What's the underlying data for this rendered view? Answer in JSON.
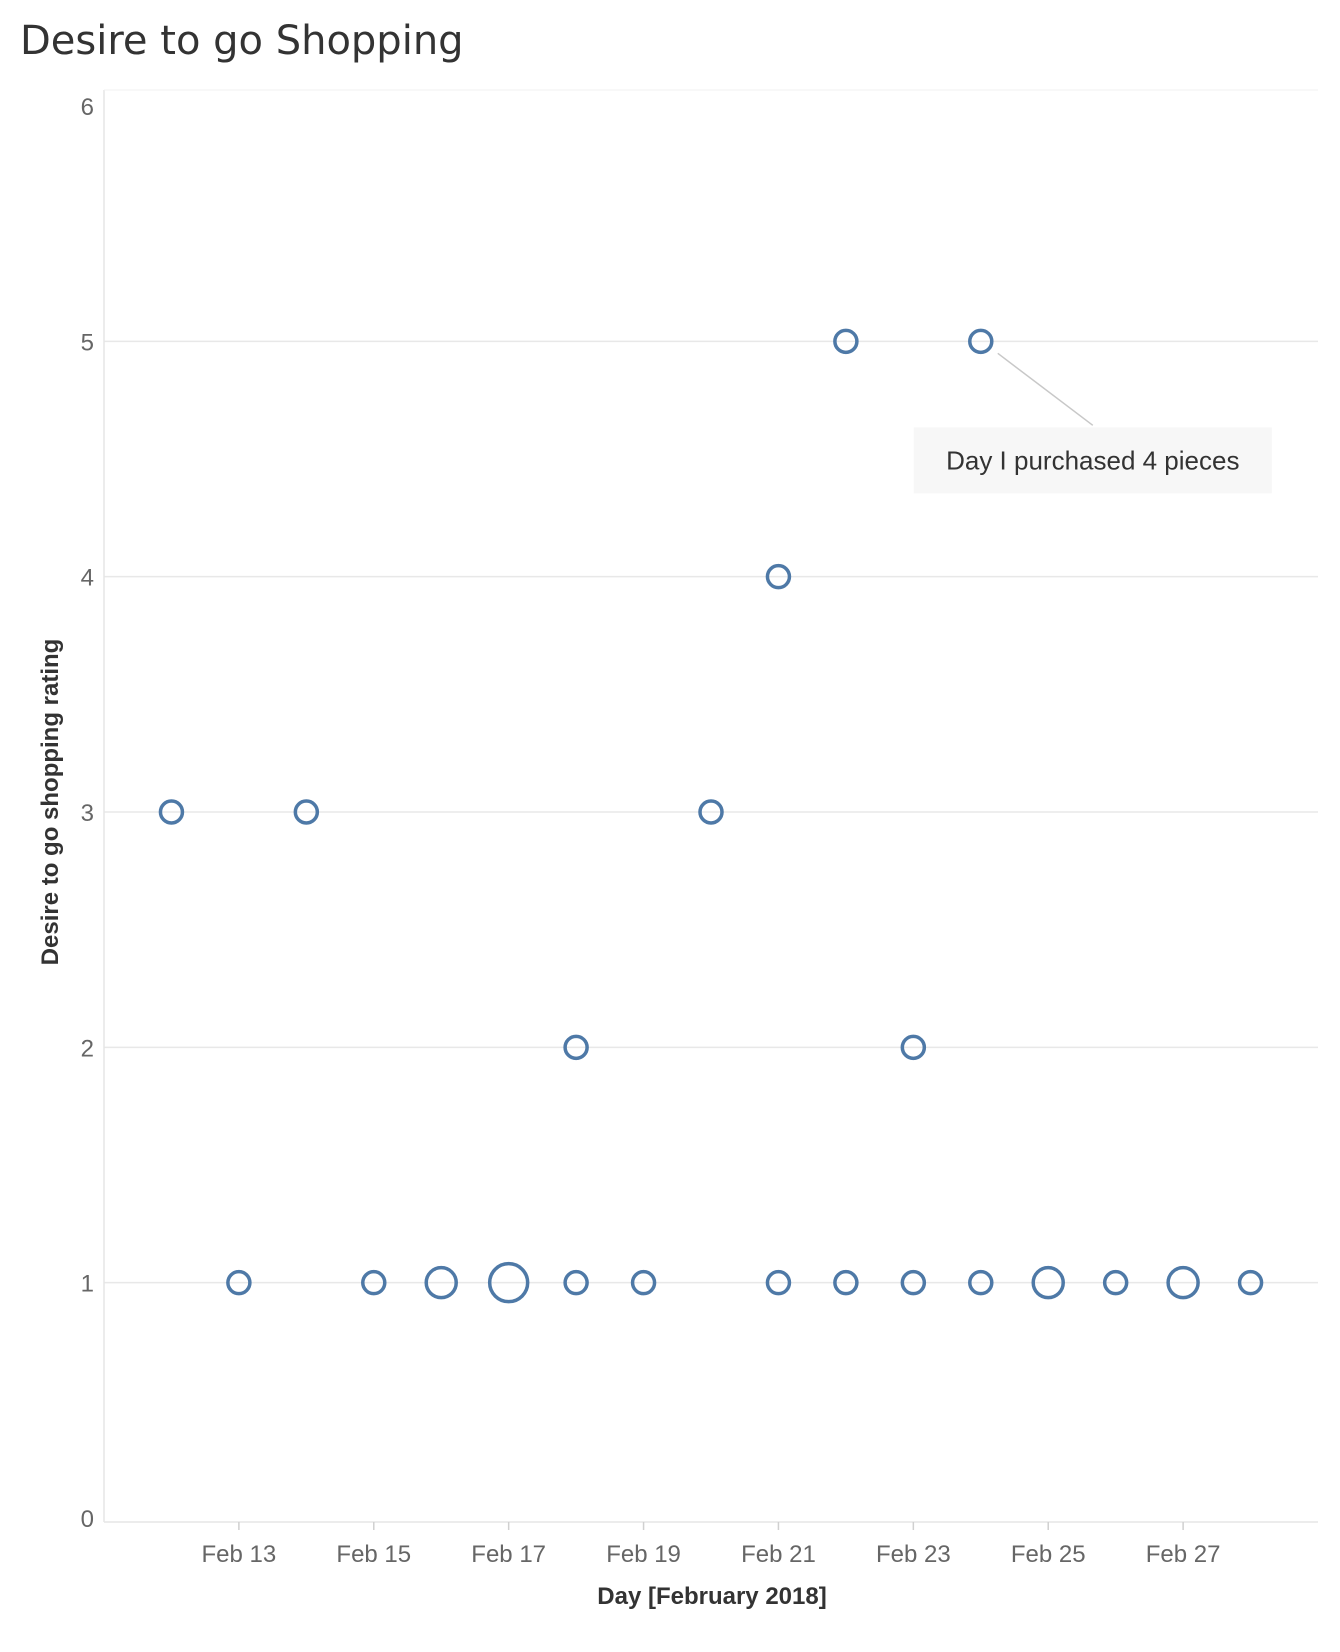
{
  "chart_data": {
    "type": "scatter",
    "title": "Desire to go Shopping",
    "xlabel": "Day [February 2018]",
    "ylabel": "Desire to go shopping rating",
    "ylim": [
      0,
      6
    ],
    "yticks": [
      "0",
      "1",
      "2",
      "3",
      "4",
      "5",
      "6"
    ],
    "xlim": [
      "2018-02-11",
      "2018-02-29"
    ],
    "xticks": [
      {
        "date": "2018-02-13",
        "label": "Feb 13"
      },
      {
        "date": "2018-02-15",
        "label": "Feb 15"
      },
      {
        "date": "2018-02-17",
        "label": "Feb 17"
      },
      {
        "date": "2018-02-19",
        "label": "Feb 19"
      },
      {
        "date": "2018-02-21",
        "label": "Feb 21"
      },
      {
        "date": "2018-02-23",
        "label": "Feb 23"
      },
      {
        "date": "2018-02-25",
        "label": "Feb 25"
      },
      {
        "date": "2018-02-27",
        "label": "Feb 27"
      }
    ],
    "grid": true,
    "marker_color": "#4e79a7",
    "points": [
      {
        "x": "2018-02-12",
        "y": 3,
        "count": 1
      },
      {
        "x": "2018-02-13",
        "y": 1,
        "count": 1
      },
      {
        "x": "2018-02-14",
        "y": 3,
        "count": 1
      },
      {
        "x": "2018-02-15",
        "y": 1,
        "count": 1
      },
      {
        "x": "2018-02-16",
        "y": 1,
        "count": 2
      },
      {
        "x": "2018-02-17",
        "y": 1,
        "count": 3
      },
      {
        "x": "2018-02-18",
        "y": 2,
        "count": 1
      },
      {
        "x": "2018-02-18",
        "y": 1,
        "count": 1
      },
      {
        "x": "2018-02-19",
        "y": 1,
        "count": 1
      },
      {
        "x": "2018-02-20",
        "y": 3,
        "count": 1
      },
      {
        "x": "2018-02-21",
        "y": 4,
        "count": 1
      },
      {
        "x": "2018-02-21",
        "y": 1,
        "count": 1
      },
      {
        "x": "2018-02-22",
        "y": 5,
        "count": 1
      },
      {
        "x": "2018-02-22",
        "y": 1,
        "count": 1
      },
      {
        "x": "2018-02-23",
        "y": 2,
        "count": 1
      },
      {
        "x": "2018-02-23",
        "y": 1,
        "count": 1
      },
      {
        "x": "2018-02-24",
        "y": 5,
        "count": 1
      },
      {
        "x": "2018-02-24",
        "y": 1,
        "count": 1
      },
      {
        "x": "2018-02-25",
        "y": 1,
        "count": 2
      },
      {
        "x": "2018-02-26",
        "y": 1,
        "count": 1
      },
      {
        "x": "2018-02-27",
        "y": 1,
        "count": 2
      },
      {
        "x": "2018-02-28",
        "y": 1,
        "count": 1
      }
    ],
    "annotations": [
      {
        "x": "2018-02-24",
        "y": 5,
        "text": "Day I purchased 4 pieces"
      }
    ]
  }
}
